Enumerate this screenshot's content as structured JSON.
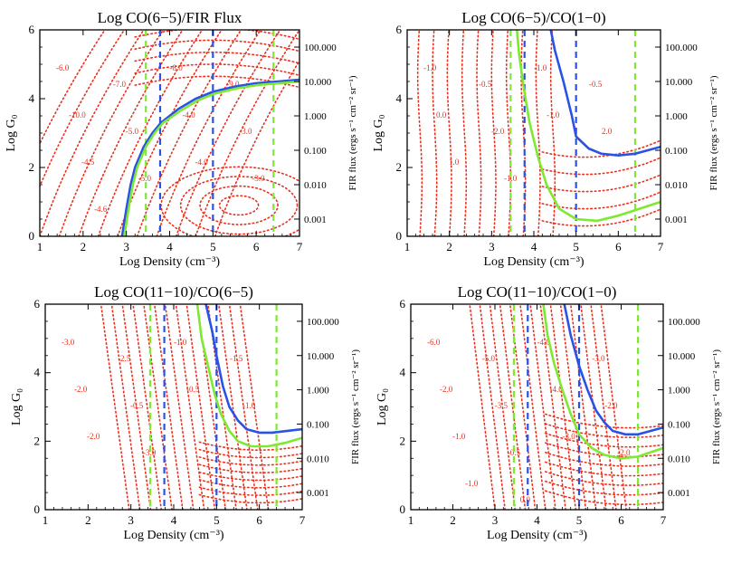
{
  "colors": {
    "red": "#e8301e",
    "blue": "#2a52e6",
    "green": "#7ee832",
    "axis": "#000000"
  },
  "chart_data": [
    {
      "type": "line",
      "title": "Log CO(6−5)/FIR Flux",
      "xlabel": "Log Density (cm⁻³)",
      "ylabel": "Log G₀",
      "y2label": "FIR flux (ergs s⁻¹ cm⁻² sr⁻¹)",
      "xlim": [
        1,
        7
      ],
      "ylim": [
        0,
        6
      ],
      "xticks": [
        "1",
        "2",
        "3",
        "4",
        "5",
        "6",
        "7"
      ],
      "yticks": [
        "0",
        "2",
        "4",
        "6"
      ],
      "y2ticks": [
        "0.001",
        "0.010",
        "0.100",
        "1.000",
        "10.000",
        "100.000"
      ],
      "y2tick_positions": [
        0.5,
        1.5,
        2.5,
        3.5,
        4.5,
        5.5
      ],
      "vlines_green": [
        3.45,
        6.4
      ],
      "vlines_blue": [
        3.78,
        5.0
      ],
      "contour_labels": [
        "-6.0",
        "-7.0",
        "-8.0",
        "-9.0",
        "-10.0",
        "-5.0",
        "-4.0",
        "-3.0",
        "-4.5",
        "-5.0",
        "-4.0",
        "-3.0",
        "-4.6"
      ],
      "series": [
        {
          "name": "blue",
          "x": [
            2.9,
            3.0,
            3.1,
            3.2,
            3.4,
            3.6,
            3.8,
            4.2,
            4.6,
            5.0,
            5.5,
            6.0,
            6.5,
            7.0
          ],
          "y": [
            0.0,
            0.8,
            1.5,
            2.0,
            2.6,
            3.0,
            3.3,
            3.7,
            4.0,
            4.2,
            4.35,
            4.45,
            4.5,
            4.55
          ]
        },
        {
          "name": "green",
          "x": [
            2.95,
            3.05,
            3.15,
            3.25,
            3.45,
            3.65,
            3.85,
            4.25,
            4.65,
            5.05,
            5.55,
            6.05,
            6.55,
            7.0
          ],
          "y": [
            0.0,
            0.8,
            1.5,
            2.0,
            2.6,
            3.0,
            3.3,
            3.65,
            3.95,
            4.15,
            4.3,
            4.4,
            4.45,
            4.5
          ]
        }
      ]
    },
    {
      "type": "line",
      "title": "Log CO(6−5)/CO(1−0)",
      "xlabel": "Log Density (cm⁻³)",
      "ylabel": "Log G₀",
      "y2label": "FIR flux (ergs s⁻¹ cm⁻² sr⁻¹)",
      "xlim": [
        1,
        7
      ],
      "ylim": [
        0,
        6
      ],
      "xticks": [
        "1",
        "2",
        "3",
        "4",
        "5",
        "6",
        "7"
      ],
      "yticks": [
        "0",
        "2",
        "4",
        "6"
      ],
      "y2ticks": [
        "0.001",
        "0.010",
        "0.100",
        "1.000",
        "10.000",
        "100.000"
      ],
      "y2tick_positions": [
        0.5,
        1.5,
        2.5,
        3.5,
        4.5,
        5.5
      ],
      "vlines_green": [
        3.45,
        6.4
      ],
      "vlines_blue": [
        3.78,
        5.0
      ],
      "contour_labels": [
        "-1.0",
        "-0.5",
        "-1.0",
        "-0.5",
        "0.0",
        "-2.0",
        "-1.0",
        "2.0",
        "1.0",
        "-1.0"
      ],
      "series": [
        {
          "name": "blue",
          "x": [
            4.4,
            4.5,
            4.7,
            4.9,
            5.0,
            5.3,
            5.6,
            6.0,
            6.4,
            7.0
          ],
          "y": [
            6.0,
            5.4,
            4.5,
            3.5,
            2.9,
            2.55,
            2.4,
            2.35,
            2.4,
            2.6
          ]
        },
        {
          "name": "green",
          "x": [
            3.6,
            3.65,
            3.75,
            3.9,
            4.1,
            4.3,
            4.6,
            5.0,
            5.5,
            6.0,
            6.5,
            7.0
          ],
          "y": [
            6.0,
            5.3,
            4.4,
            3.3,
            2.3,
            1.5,
            0.8,
            0.5,
            0.45,
            0.6,
            0.8,
            1.0
          ]
        }
      ]
    },
    {
      "type": "line",
      "title": "Log CO(11−10)/CO(6−5)",
      "xlabel": "Log Density (cm⁻³)",
      "ylabel": "Log G₀",
      "y2label": "FIR flux (ergs s⁻¹ cm⁻² sr⁻¹)",
      "xlim": [
        1,
        7
      ],
      "ylim": [
        0,
        6
      ],
      "xticks": [
        "1",
        "2",
        "3",
        "4",
        "5",
        "6",
        "7"
      ],
      "yticks": [
        "0",
        "2",
        "4",
        "6"
      ],
      "y2ticks": [
        "0.001",
        "0.010",
        "0.100",
        "1.000",
        "10.000",
        "100.000"
      ],
      "y2tick_positions": [
        0.5,
        1.5,
        2.5,
        3.5,
        4.5,
        5.5
      ],
      "vlines_green": [
        3.45,
        6.4
      ],
      "vlines_blue": [
        3.78,
        5.0
      ],
      "contour_labels": [
        "-3.0",
        "-2.5",
        "-1.0",
        "-1.5",
        "-2.0",
        "-0.5",
        "-0.5",
        "-1.0",
        "-2.0",
        "-3.0"
      ],
      "series": [
        {
          "name": "blue",
          "x": [
            4.75,
            4.9,
            5.0,
            5.15,
            5.3,
            5.5,
            5.7,
            6.0,
            6.3,
            7.0
          ],
          "y": [
            6.0,
            5.2,
            4.5,
            3.6,
            3.0,
            2.6,
            2.35,
            2.25,
            2.25,
            2.35
          ]
        },
        {
          "name": "green",
          "x": [
            4.55,
            4.65,
            4.8,
            4.95,
            5.1,
            5.3,
            5.5,
            5.8,
            6.2,
            6.6,
            7.0
          ],
          "y": [
            6.0,
            5.0,
            4.2,
            3.4,
            2.8,
            2.3,
            2.0,
            1.85,
            1.85,
            1.95,
            2.1
          ]
        }
      ]
    },
    {
      "type": "line",
      "title": "Log CO(11−10)/CO(1−0)",
      "xlabel": "Log Density (cm⁻³)",
      "ylabel": "Log G₀",
      "y2label": "FIR flux (ergs s⁻¹ cm⁻² sr⁻¹)",
      "xlim": [
        1,
        7
      ],
      "ylim": [
        0,
        6
      ],
      "xticks": [
        "1",
        "2",
        "3",
        "4",
        "5",
        "6",
        "7"
      ],
      "yticks": [
        "0",
        "2",
        "4",
        "6"
      ],
      "y2ticks": [
        "0.001",
        "0.010",
        "0.100",
        "1.000",
        "10.000",
        "100.000"
      ],
      "y2tick_positions": [
        0.5,
        1.5,
        2.5,
        3.5,
        4.5,
        5.5
      ],
      "vlines_green": [
        3.45,
        6.4
      ],
      "vlines_blue": [
        3.78,
        5.0
      ],
      "contour_labels": [
        "-6.0",
        "-5.0",
        "-4.0",
        "-3.0",
        "-2.0",
        "-3.5",
        "-4.0",
        "-2.0",
        "-1.0",
        "-0.5",
        "-3.0",
        "-2.0",
        "-1.0",
        "0.0"
      ],
      "series": [
        {
          "name": "blue",
          "x": [
            4.65,
            4.8,
            5.0,
            5.2,
            5.4,
            5.6,
            5.8,
            6.1,
            6.4,
            7.0
          ],
          "y": [
            6.0,
            5.1,
            4.2,
            3.5,
            2.9,
            2.55,
            2.3,
            2.2,
            2.2,
            2.4
          ]
        },
        {
          "name": "green",
          "x": [
            4.15,
            4.25,
            4.4,
            4.6,
            4.8,
            5.0,
            5.3,
            5.6,
            6.0,
            6.4,
            7.0
          ],
          "y": [
            6.0,
            5.1,
            4.3,
            3.5,
            2.8,
            2.2,
            1.8,
            1.6,
            1.5,
            1.55,
            1.8
          ]
        }
      ]
    }
  ]
}
